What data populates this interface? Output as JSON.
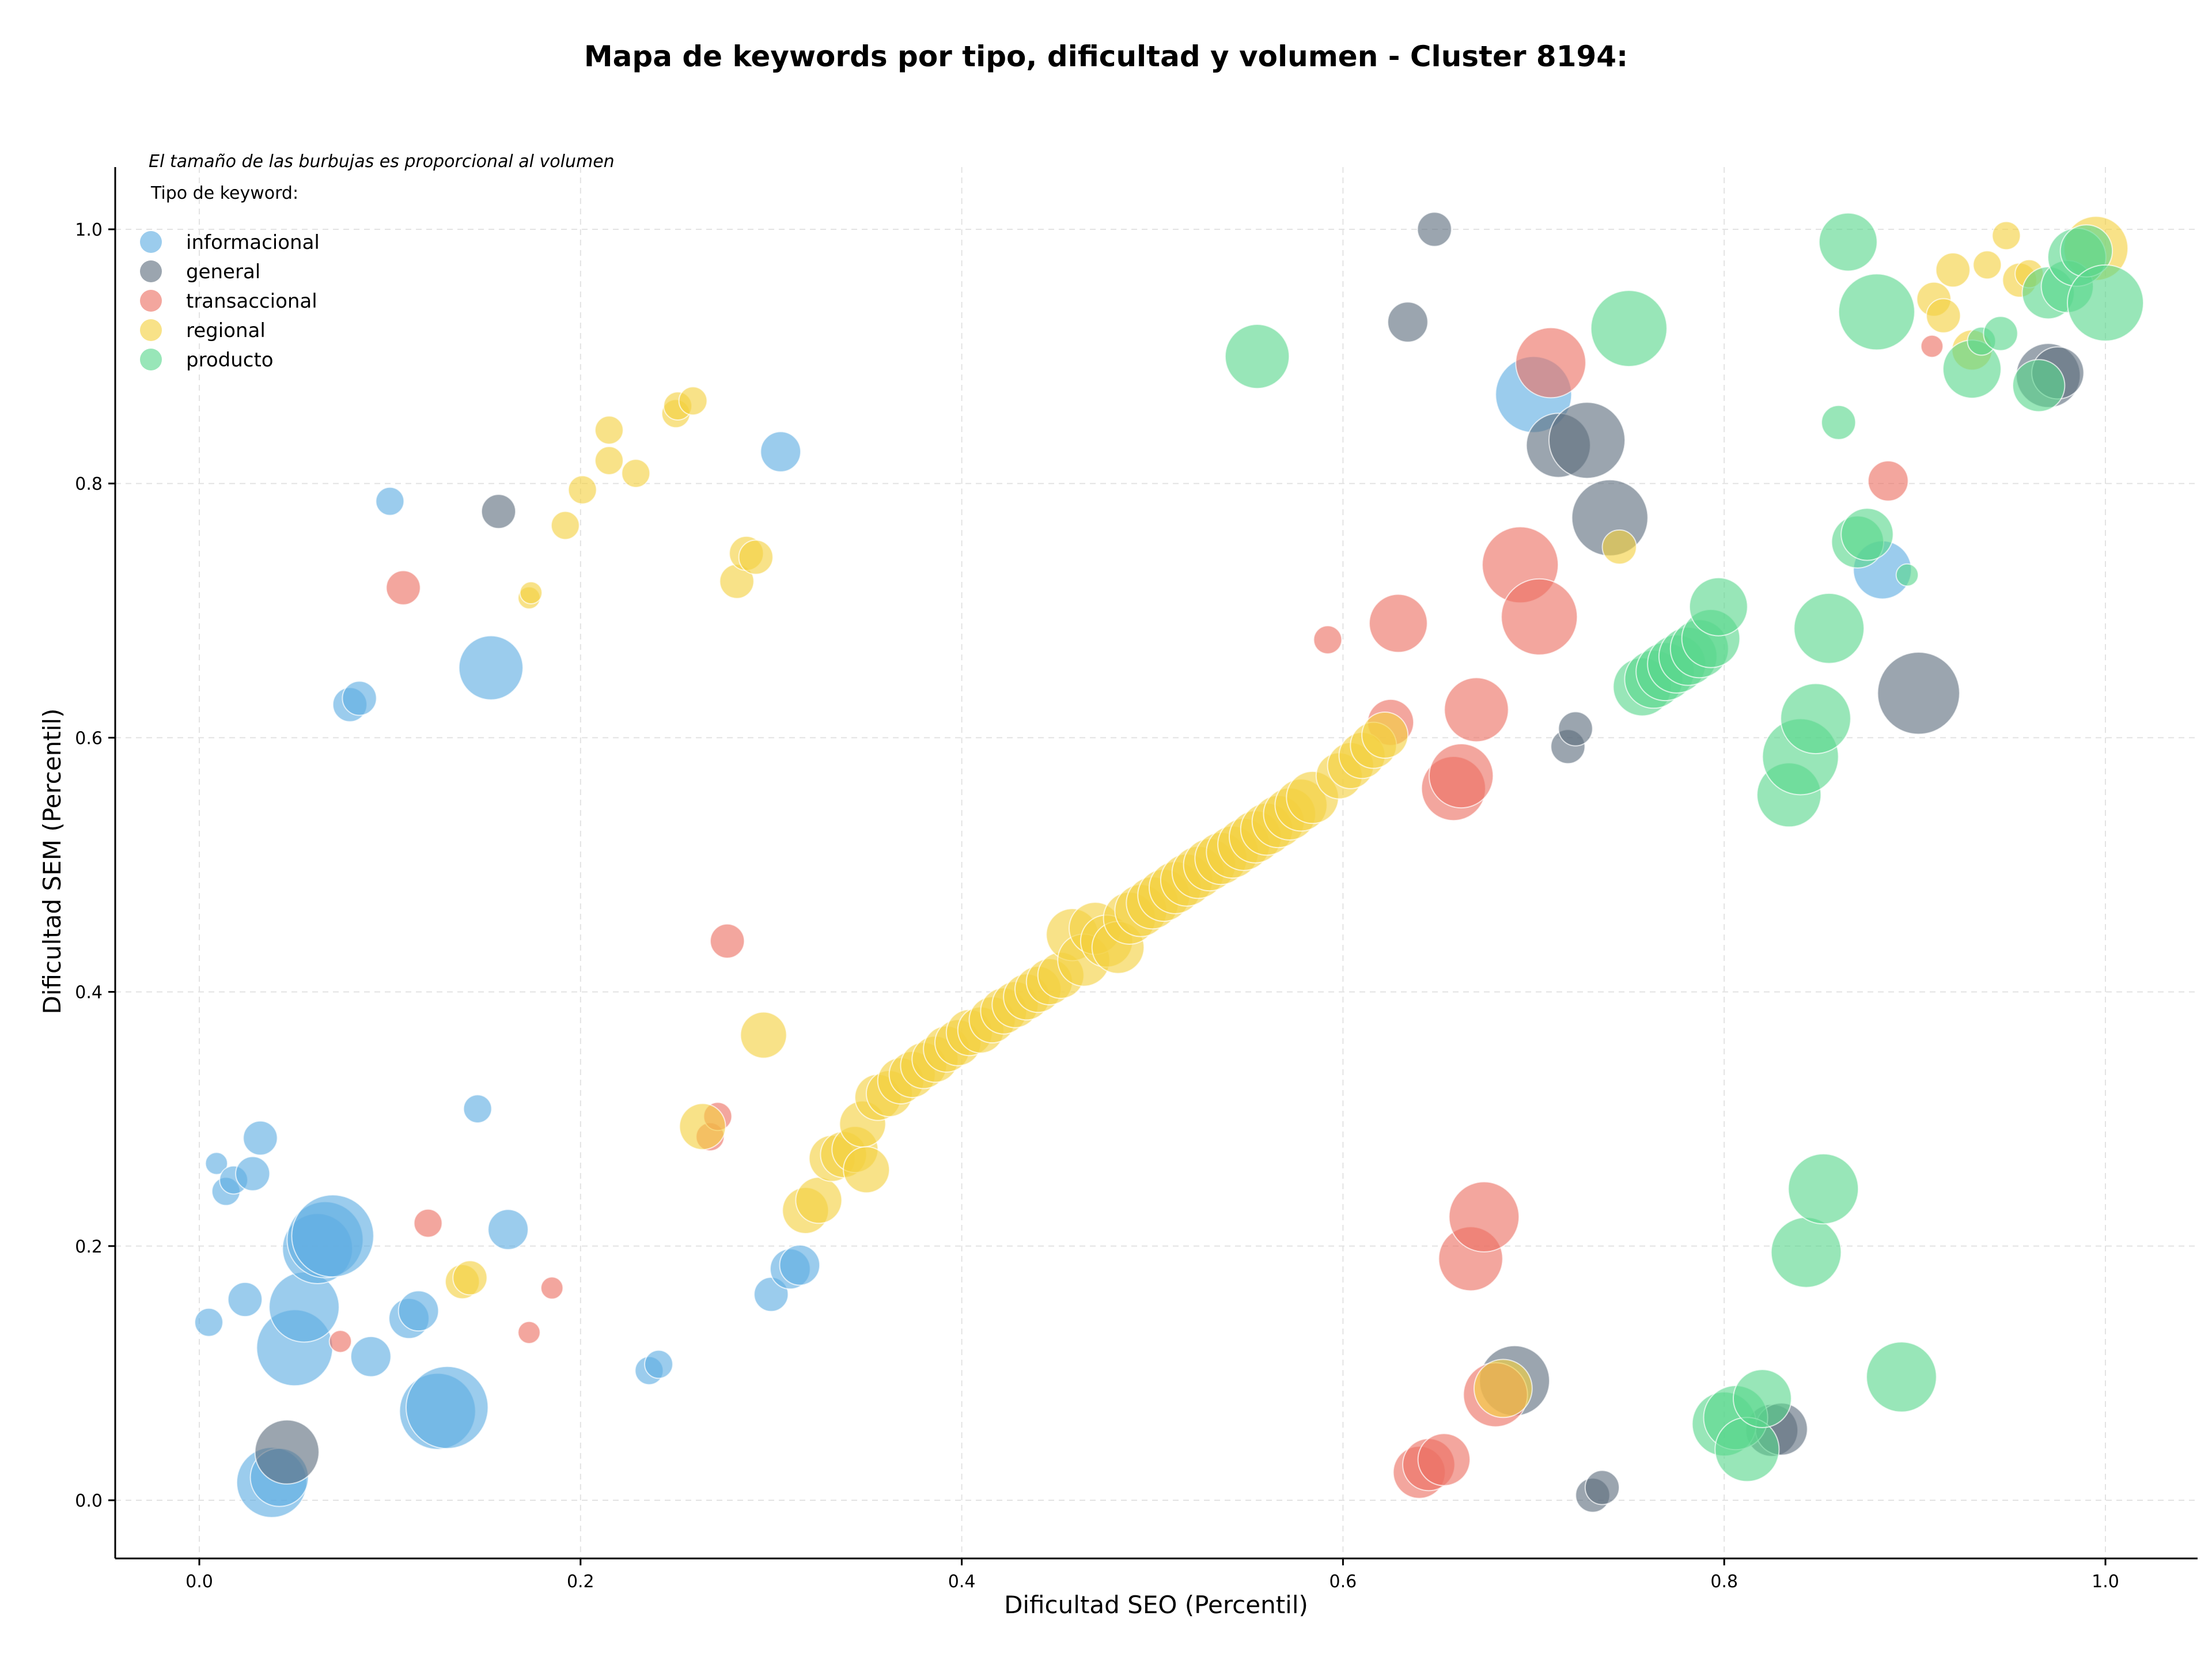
{
  "chart_data": {
    "type": "scatter",
    "title": "Mapa de keywords por tipo, dificultad y volumen - Cluster 8194:",
    "xlabel": "Dificultad SEO (Percentil)",
    "ylabel": "Dificultad SEM (Percentil)",
    "note": "El tamaño de las burbujas es proporcional al volumen",
    "legend_title": "Tipo de keyword:",
    "legend_position": "top-left",
    "grid": true,
    "xlim": [
      -0.045,
      1.05
    ],
    "ylim": [
      -0.045,
      1.05
    ],
    "xticks": [
      0.0,
      0.2,
      0.4,
      0.6,
      0.8,
      1.0
    ],
    "yticks": [
      0.0,
      0.2,
      0.4,
      0.6,
      0.8,
      1.0
    ],
    "xtick_labels": [
      "0.0",
      "0.2",
      "0.4",
      "0.6",
      "0.8",
      "1.0"
    ],
    "ytick_labels": [
      "0.0",
      "0.2",
      "0.4",
      "0.6",
      "0.8",
      "1.0"
    ],
    "series": [
      {
        "name": "informacional",
        "color": "#5dade2",
        "points": [
          {
            "x": 0.005,
            "y": 0.14,
            "v": 2
          },
          {
            "x": 0.009,
            "y": 0.265,
            "v": 1
          },
          {
            "x": 0.014,
            "y": 0.243,
            "v": 2
          },
          {
            "x": 0.018,
            "y": 0.252,
            "v": 2
          },
          {
            "x": 0.024,
            "y": 0.158,
            "v": 3
          },
          {
            "x": 0.028,
            "y": 0.257,
            "v": 3
          },
          {
            "x": 0.032,
            "y": 0.285,
            "v": 3
          },
          {
            "x": 0.038,
            "y": 0.014,
            "v": 9
          },
          {
            "x": 0.042,
            "y": 0.018,
            "v": 7
          },
          {
            "x": 0.05,
            "y": 0.12,
            "v": 10
          },
          {
            "x": 0.055,
            "y": 0.152,
            "v": 9
          },
          {
            "x": 0.062,
            "y": 0.198,
            "v": 9
          },
          {
            "x": 0.066,
            "y": 0.205,
            "v": 10
          },
          {
            "x": 0.07,
            "y": 0.208,
            "v": 11
          },
          {
            "x": 0.079,
            "y": 0.626,
            "v": 3
          },
          {
            "x": 0.084,
            "y": 0.631,
            "v": 3
          },
          {
            "x": 0.09,
            "y": 0.113,
            "v": 4
          },
          {
            "x": 0.1,
            "y": 0.786,
            "v": 2
          },
          {
            "x": 0.11,
            "y": 0.143,
            "v": 4
          },
          {
            "x": 0.115,
            "y": 0.149,
            "v": 4
          },
          {
            "x": 0.125,
            "y": 0.07,
            "v": 10
          },
          {
            "x": 0.13,
            "y": 0.073,
            "v": 11
          },
          {
            "x": 0.146,
            "y": 0.308,
            "v": 2
          },
          {
            "x": 0.153,
            "y": 0.655,
            "v": 8
          },
          {
            "x": 0.162,
            "y": 0.213,
            "v": 4
          },
          {
            "x": 0.236,
            "y": 0.102,
            "v": 2
          },
          {
            "x": 0.241,
            "y": 0.107,
            "v": 2
          },
          {
            "x": 0.3,
            "y": 0.162,
            "v": 3
          },
          {
            "x": 0.305,
            "y": 0.825,
            "v": 4
          },
          {
            "x": 0.31,
            "y": 0.182,
            "v": 4
          },
          {
            "x": 0.315,
            "y": 0.185,
            "v": 4
          },
          {
            "x": 0.7,
            "y": 0.87,
            "v": 10
          },
          {
            "x": 0.883,
            "y": 0.732,
            "v": 7
          }
        ]
      },
      {
        "name": "general",
        "color": "#5d6d7e",
        "points": [
          {
            "x": 0.046,
            "y": 0.038,
            "v": 8
          },
          {
            "x": 0.157,
            "y": 0.778,
            "v": 3
          },
          {
            "x": 0.634,
            "y": 0.927,
            "v": 4
          },
          {
            "x": 0.648,
            "y": 1.0,
            "v": 3
          },
          {
            "x": 0.69,
            "y": 0.094,
            "v": 9
          },
          {
            "x": 0.713,
            "y": 0.83,
            "v": 8
          },
          {
            "x": 0.718,
            "y": 0.593,
            "v": 3
          },
          {
            "x": 0.722,
            "y": 0.607,
            "v": 3
          },
          {
            "x": 0.728,
            "y": 0.834,
            "v": 10
          },
          {
            "x": 0.731,
            "y": 0.004,
            "v": 3
          },
          {
            "x": 0.736,
            "y": 0.01,
            "v": 3
          },
          {
            "x": 0.74,
            "y": 0.773,
            "v": 10
          },
          {
            "x": 0.825,
            "y": 0.055,
            "v": 6
          },
          {
            "x": 0.83,
            "y": 0.056,
            "v": 6
          },
          {
            "x": 0.902,
            "y": 0.635,
            "v": 11
          },
          {
            "x": 0.97,
            "y": 0.885,
            "v": 8
          },
          {
            "x": 0.975,
            "y": 0.887,
            "v": 6
          }
        ]
      },
      {
        "name": "transaccional",
        "color": "#ec7063",
        "points": [
          {
            "x": 0.074,
            "y": 0.125,
            "v": 1
          },
          {
            "x": 0.107,
            "y": 0.718,
            "v": 3
          },
          {
            "x": 0.12,
            "y": 0.218,
            "v": 2
          },
          {
            "x": 0.173,
            "y": 0.132,
            "v": 1
          },
          {
            "x": 0.185,
            "y": 0.167,
            "v": 1
          },
          {
            "x": 0.268,
            "y": 0.286,
            "v": 2
          },
          {
            "x": 0.272,
            "y": 0.302,
            "v": 2
          },
          {
            "x": 0.277,
            "y": 0.44,
            "v": 3
          },
          {
            "x": 0.592,
            "y": 0.677,
            "v": 2
          },
          {
            "x": 0.625,
            "y": 0.612,
            "v": 5
          },
          {
            "x": 0.629,
            "y": 0.69,
            "v": 7
          },
          {
            "x": 0.64,
            "y": 0.022,
            "v": 6
          },
          {
            "x": 0.645,
            "y": 0.028,
            "v": 6
          },
          {
            "x": 0.653,
            "y": 0.032,
            "v": 6
          },
          {
            "x": 0.658,
            "y": 0.56,
            "v": 8
          },
          {
            "x": 0.662,
            "y": 0.57,
            "v": 8
          },
          {
            "x": 0.667,
            "y": 0.19,
            "v": 8
          },
          {
            "x": 0.67,
            "y": 0.622,
            "v": 8
          },
          {
            "x": 0.674,
            "y": 0.223,
            "v": 9
          },
          {
            "x": 0.68,
            "y": 0.083,
            "v": 8
          },
          {
            "x": 0.693,
            "y": 0.736,
            "v": 10
          },
          {
            "x": 0.703,
            "y": 0.695,
            "v": 10
          },
          {
            "x": 0.709,
            "y": 0.895,
            "v": 9
          },
          {
            "x": 0.886,
            "y": 0.802,
            "v": 4
          },
          {
            "x": 0.909,
            "y": 0.908,
            "v": 1
          }
        ]
      },
      {
        "name": "regional",
        "color": "#f4d03f",
        "points": [
          {
            "x": 0.138,
            "y": 0.172,
            "v": 3
          },
          {
            "x": 0.142,
            "y": 0.175,
            "v": 3
          },
          {
            "x": 0.173,
            "y": 0.71,
            "v": 1
          },
          {
            "x": 0.174,
            "y": 0.714,
            "v": 1
          },
          {
            "x": 0.192,
            "y": 0.767,
            "v": 2
          },
          {
            "x": 0.201,
            "y": 0.795,
            "v": 2
          },
          {
            "x": 0.215,
            "y": 0.842,
            "v": 2
          },
          {
            "x": 0.215,
            "y": 0.818,
            "v": 2
          },
          {
            "x": 0.229,
            "y": 0.808,
            "v": 2
          },
          {
            "x": 0.25,
            "y": 0.855,
            "v": 2
          },
          {
            "x": 0.251,
            "y": 0.861,
            "v": 2
          },
          {
            "x": 0.259,
            "y": 0.865,
            "v": 2
          },
          {
            "x": 0.264,
            "y": 0.294,
            "v": 5
          },
          {
            "x": 0.282,
            "y": 0.723,
            "v": 3
          },
          {
            "x": 0.287,
            "y": 0.745,
            "v": 3
          },
          {
            "x": 0.292,
            "y": 0.742,
            "v": 3
          },
          {
            "x": 0.296,
            "y": 0.366,
            "v": 5
          },
          {
            "x": 0.318,
            "y": 0.228,
            "v": 5
          },
          {
            "x": 0.325,
            "y": 0.236,
            "v": 5
          },
          {
            "x": 0.332,
            "y": 0.269,
            "v": 5
          },
          {
            "x": 0.338,
            "y": 0.272,
            "v": 5
          },
          {
            "x": 0.344,
            "y": 0.276,
            "v": 5
          },
          {
            "x": 0.348,
            "y": 0.296,
            "v": 5
          },
          {
            "x": 0.35,
            "y": 0.26,
            "v": 5
          },
          {
            "x": 0.356,
            "y": 0.317,
            "v": 5
          },
          {
            "x": 0.362,
            "y": 0.32,
            "v": 5
          },
          {
            "x": 0.368,
            "y": 0.33,
            "v": 5
          },
          {
            "x": 0.374,
            "y": 0.335,
            "v": 5
          },
          {
            "x": 0.38,
            "y": 0.342,
            "v": 5
          },
          {
            "x": 0.386,
            "y": 0.347,
            "v": 5
          },
          {
            "x": 0.392,
            "y": 0.355,
            "v": 5
          },
          {
            "x": 0.398,
            "y": 0.36,
            "v": 5
          },
          {
            "x": 0.404,
            "y": 0.368,
            "v": 5
          },
          {
            "x": 0.41,
            "y": 0.37,
            "v": 5
          },
          {
            "x": 0.416,
            "y": 0.378,
            "v": 5
          },
          {
            "x": 0.422,
            "y": 0.385,
            "v": 5
          },
          {
            "x": 0.428,
            "y": 0.39,
            "v": 5
          },
          {
            "x": 0.434,
            "y": 0.396,
            "v": 5
          },
          {
            "x": 0.44,
            "y": 0.402,
            "v": 5
          },
          {
            "x": 0.446,
            "y": 0.408,
            "v": 5
          },
          {
            "x": 0.452,
            "y": 0.413,
            "v": 5
          },
          {
            "x": 0.458,
            "y": 0.445,
            "v": 6
          },
          {
            "x": 0.464,
            "y": 0.425,
            "v": 6
          },
          {
            "x": 0.47,
            "y": 0.45,
            "v": 6
          },
          {
            "x": 0.476,
            "y": 0.44,
            "v": 6
          },
          {
            "x": 0.482,
            "y": 0.435,
            "v": 6
          },
          {
            "x": 0.488,
            "y": 0.458,
            "v": 6
          },
          {
            "x": 0.494,
            "y": 0.464,
            "v": 6
          },
          {
            "x": 0.5,
            "y": 0.47,
            "v": 6
          },
          {
            "x": 0.506,
            "y": 0.476,
            "v": 6
          },
          {
            "x": 0.512,
            "y": 0.482,
            "v": 6
          },
          {
            "x": 0.518,
            "y": 0.488,
            "v": 6
          },
          {
            "x": 0.524,
            "y": 0.494,
            "v": 6
          },
          {
            "x": 0.53,
            "y": 0.5,
            "v": 6
          },
          {
            "x": 0.536,
            "y": 0.505,
            "v": 6
          },
          {
            "x": 0.542,
            "y": 0.51,
            "v": 6
          },
          {
            "x": 0.548,
            "y": 0.516,
            "v": 6
          },
          {
            "x": 0.554,
            "y": 0.522,
            "v": 6
          },
          {
            "x": 0.56,
            "y": 0.528,
            "v": 6
          },
          {
            "x": 0.566,
            "y": 0.534,
            "v": 6
          },
          {
            "x": 0.572,
            "y": 0.54,
            "v": 6
          },
          {
            "x": 0.578,
            "y": 0.547,
            "v": 6
          },
          {
            "x": 0.584,
            "y": 0.553,
            "v": 6
          },
          {
            "x": 0.598,
            "y": 0.57,
            "v": 5
          },
          {
            "x": 0.604,
            "y": 0.578,
            "v": 5
          },
          {
            "x": 0.61,
            "y": 0.586,
            "v": 5
          },
          {
            "x": 0.616,
            "y": 0.594,
            "v": 5
          },
          {
            "x": 0.622,
            "y": 0.602,
            "v": 5
          },
          {
            "x": 0.684,
            "y": 0.088,
            "v": 7
          },
          {
            "x": 0.745,
            "y": 0.75,
            "v": 3
          },
          {
            "x": 0.91,
            "y": 0.945,
            "v": 3
          },
          {
            "x": 0.915,
            "y": 0.932,
            "v": 3
          },
          {
            "x": 0.92,
            "y": 0.968,
            "v": 3
          },
          {
            "x": 0.93,
            "y": 0.905,
            "v": 4
          },
          {
            "x": 0.938,
            "y": 0.972,
            "v": 2
          },
          {
            "x": 0.948,
            "y": 0.995,
            "v": 2
          },
          {
            "x": 0.955,
            "y": 0.96,
            "v": 3
          },
          {
            "x": 0.96,
            "y": 0.965,
            "v": 2
          },
          {
            "x": 0.995,
            "y": 0.985,
            "v": 8
          }
        ]
      },
      {
        "name": "producto",
        "color": "#58d68d",
        "points": [
          {
            "x": 0.555,
            "y": 0.9,
            "v": 8
          },
          {
            "x": 0.75,
            "y": 0.922,
            "v": 10
          },
          {
            "x": 0.757,
            "y": 0.64,
            "v": 7
          },
          {
            "x": 0.763,
            "y": 0.646,
            "v": 7
          },
          {
            "x": 0.769,
            "y": 0.652,
            "v": 7
          },
          {
            "x": 0.775,
            "y": 0.658,
            "v": 7
          },
          {
            "x": 0.781,
            "y": 0.664,
            "v": 7
          },
          {
            "x": 0.787,
            "y": 0.67,
            "v": 7
          },
          {
            "x": 0.793,
            "y": 0.678,
            "v": 7
          },
          {
            "x": 0.797,
            "y": 0.703,
            "v": 7
          },
          {
            "x": 0.8,
            "y": 0.06,
            "v": 8
          },
          {
            "x": 0.806,
            "y": 0.065,
            "v": 8
          },
          {
            "x": 0.812,
            "y": 0.04,
            "v": 8
          },
          {
            "x": 0.82,
            "y": 0.08,
            "v": 7
          },
          {
            "x": 0.834,
            "y": 0.555,
            "v": 8
          },
          {
            "x": 0.84,
            "y": 0.585,
            "v": 10
          },
          {
            "x": 0.843,
            "y": 0.195,
            "v": 9
          },
          {
            "x": 0.848,
            "y": 0.615,
            "v": 9
          },
          {
            "x": 0.852,
            "y": 0.245,
            "v": 9
          },
          {
            "x": 0.855,
            "y": 0.686,
            "v": 9
          },
          {
            "x": 0.86,
            "y": 0.848,
            "v": 3
          },
          {
            "x": 0.865,
            "y": 0.99,
            "v": 7
          },
          {
            "x": 0.87,
            "y": 0.754,
            "v": 6
          },
          {
            "x": 0.875,
            "y": 0.76,
            "v": 6
          },
          {
            "x": 0.88,
            "y": 0.935,
            "v": 10
          },
          {
            "x": 0.893,
            "y": 0.097,
            "v": 9
          },
          {
            "x": 0.896,
            "y": 0.728,
            "v": 1
          },
          {
            "x": 0.93,
            "y": 0.89,
            "v": 7
          },
          {
            "x": 0.935,
            "y": 0.912,
            "v": 2
          },
          {
            "x": 0.945,
            "y": 0.918,
            "v": 3
          },
          {
            "x": 0.965,
            "y": 0.877,
            "v": 6
          },
          {
            "x": 0.97,
            "y": 0.95,
            "v": 6
          },
          {
            "x": 0.98,
            "y": 0.955,
            "v": 6
          },
          {
            "x": 0.985,
            "y": 0.978,
            "v": 7
          },
          {
            "x": 0.99,
            "y": 0.983,
            "v": 6
          },
          {
            "x": 1.0,
            "y": 0.942,
            "v": 10
          }
        ]
      }
    ]
  }
}
